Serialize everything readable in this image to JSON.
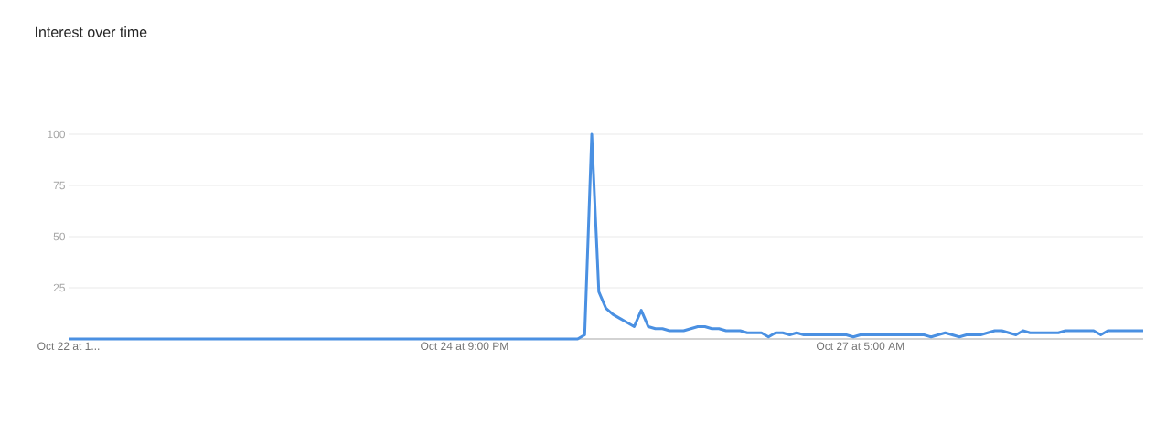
{
  "chart_data": {
    "type": "line",
    "title": "Interest over time",
    "categories": [
      "Oct 22 at 1...",
      null,
      null,
      null,
      null,
      null,
      null,
      null,
      null,
      null,
      null,
      null,
      null,
      null,
      null,
      null,
      null,
      null,
      null,
      null,
      null,
      null,
      null,
      null,
      null,
      null,
      null,
      null,
      null,
      null,
      null,
      null,
      null,
      null,
      null,
      null,
      null,
      null,
      null,
      null,
      null,
      null,
      null,
      null,
      null,
      null,
      null,
      null,
      null,
      null,
      null,
      null,
      null,
      null,
      null,
      null,
      "Oct 24 at 9:00 PM",
      null,
      null,
      null,
      null,
      null,
      null,
      null,
      null,
      null,
      null,
      null,
      null,
      null,
      null,
      null,
      null,
      null,
      null,
      null,
      null,
      null,
      null,
      null,
      null,
      null,
      null,
      null,
      null,
      null,
      null,
      null,
      null,
      null,
      null,
      null,
      null,
      null,
      null,
      null,
      null,
      null,
      null,
      null,
      null,
      null,
      null,
      null,
      null,
      null,
      null,
      null,
      null,
      null,
      null,
      null,
      "Oct 27 at 5:00 AM",
      null,
      null,
      null,
      null,
      null,
      null,
      null,
      null,
      null,
      null,
      null,
      null,
      null,
      null,
      null,
      null,
      null,
      null,
      null,
      null,
      null,
      null,
      null,
      null,
      null,
      null,
      null,
      null,
      null,
      null,
      null,
      null,
      null,
      null,
      null,
      null,
      null,
      null,
      null,
      null
    ],
    "values": [
      0,
      0,
      0,
      0,
      0,
      0,
      0,
      0,
      0,
      0,
      0,
      0,
      0,
      0,
      0,
      0,
      0,
      0,
      0,
      0,
      0,
      0,
      0,
      0,
      0,
      0,
      0,
      0,
      0,
      0,
      0,
      0,
      0,
      0,
      0,
      0,
      0,
      0,
      0,
      0,
      0,
      0,
      0,
      0,
      0,
      0,
      0,
      0,
      0,
      0,
      0,
      0,
      0,
      0,
      0,
      0,
      0,
      0,
      0,
      0,
      0,
      0,
      0,
      0,
      0,
      0,
      0,
      0,
      0,
      0,
      0,
      0,
      0,
      2,
      100,
      23,
      15,
      12,
      10,
      8,
      6,
      14,
      6,
      5,
      5,
      4,
      4,
      4,
      5,
      6,
      6,
      5,
      5,
      4,
      4,
      4,
      3,
      3,
      3,
      1,
      3,
      3,
      2,
      3,
      2,
      2,
      2,
      2,
      2,
      2,
      2,
      1,
      2,
      2,
      2,
      2,
      2,
      2,
      2,
      2,
      2,
      2,
      1,
      2,
      3,
      2,
      1,
      2,
      2,
      2,
      3,
      4,
      4,
      3,
      2,
      4,
      3,
      3,
      3,
      3,
      3,
      4,
      4,
      4,
      4,
      4,
      2,
      4,
      4,
      4,
      4,
      4,
      4
    ],
    "color": "#4a90e2",
    "ylim": [
      0,
      100
    ],
    "yticks": [
      25,
      50,
      75,
      100
    ],
    "grid": "y"
  }
}
